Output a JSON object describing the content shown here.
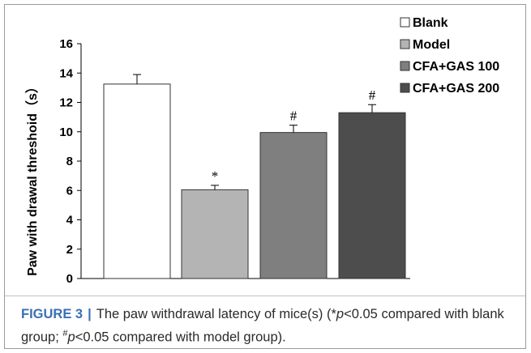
{
  "chart_data": {
    "type": "bar",
    "categories": [
      "Blank",
      "Model",
      "CFA+GAS 100",
      "CFA+GAS 200"
    ],
    "values": [
      13.25,
      6.05,
      9.95,
      11.3
    ],
    "errors": [
      0.65,
      0.3,
      0.5,
      0.55
    ],
    "bar_colors": [
      "#ffffff",
      "#b4b4b4",
      "#7f7f7f",
      "#4d4d4d"
    ],
    "significance": [
      "",
      "*",
      "#",
      "#"
    ],
    "ylabel": "Paw with drawal threshoid（s）",
    "xlabel": "",
    "ylim": [
      0,
      16
    ],
    "yticks": [
      0,
      2,
      4,
      6,
      8,
      10,
      12,
      14,
      16
    ],
    "legend": [
      "Blank",
      "Model",
      "CFA+GAS 100",
      "CFA+GAS 200"
    ],
    "legend_position": "top-right",
    "grid": false
  },
  "caption": {
    "label": "FIGURE 3",
    "separator": "|",
    "text_before": "The paw withdrawal latency of mice(s) (*",
    "p1": "p",
    "mid": "<0.05 compared with blank group; ",
    "hash": "#",
    "p2": "p",
    "end": "<0.05 compared with model group)."
  }
}
